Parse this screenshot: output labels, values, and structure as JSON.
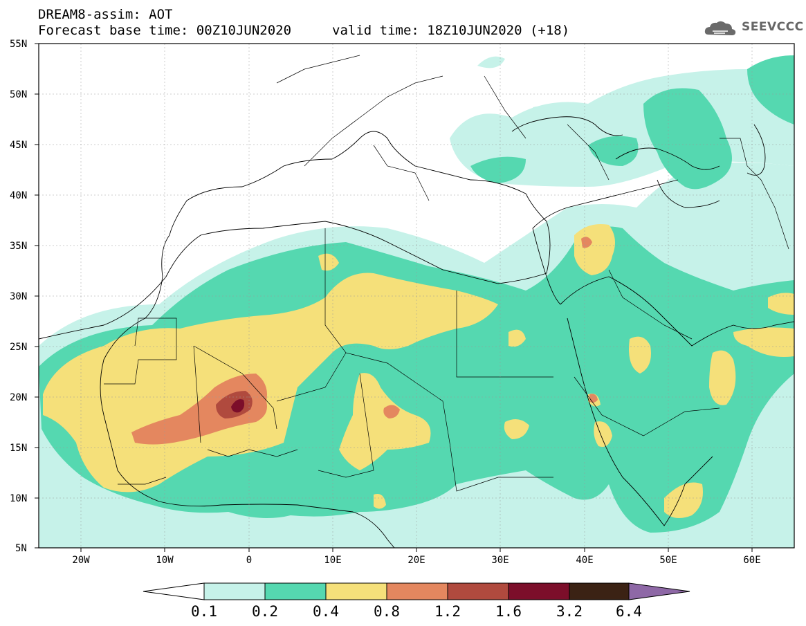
{
  "header": {
    "title": "DREAM8-assim: AOT",
    "base_time": "Forecast base time: 00Z10JUN2020",
    "valid_time": "valid time: 18Z10JUN2020 (+18)",
    "logo_text": "SEEVCCC"
  },
  "map": {
    "lat_labels": [
      "55N",
      "50N",
      "45N",
      "40N",
      "35N",
      "30N",
      "25N",
      "20N",
      "15N",
      "10N",
      "5N"
    ],
    "lon_labels": [
      "20W",
      "10W",
      "0",
      "10E",
      "20E",
      "30E",
      "40E",
      "50E",
      "60E"
    ],
    "extent": {
      "lon": [
        -25,
        65
      ],
      "lat": [
        5,
        55
      ]
    },
    "variable": "Aerosol Optical Thickness",
    "max_region": "Mali, around 19N 1W (AOT > 1.6)"
  },
  "colorbar": {
    "labels": [
      "0.1",
      "0.2",
      "0.4",
      "0.8",
      "1.2",
      "1.6",
      "3.2",
      "6.4"
    ],
    "colors": [
      "#c6f2e9",
      "#55d8b0",
      "#f5e07a",
      "#e4875f",
      "#b04a3e",
      "#7c0e2a",
      "#3b2214",
      "#8e68a6"
    ]
  }
}
